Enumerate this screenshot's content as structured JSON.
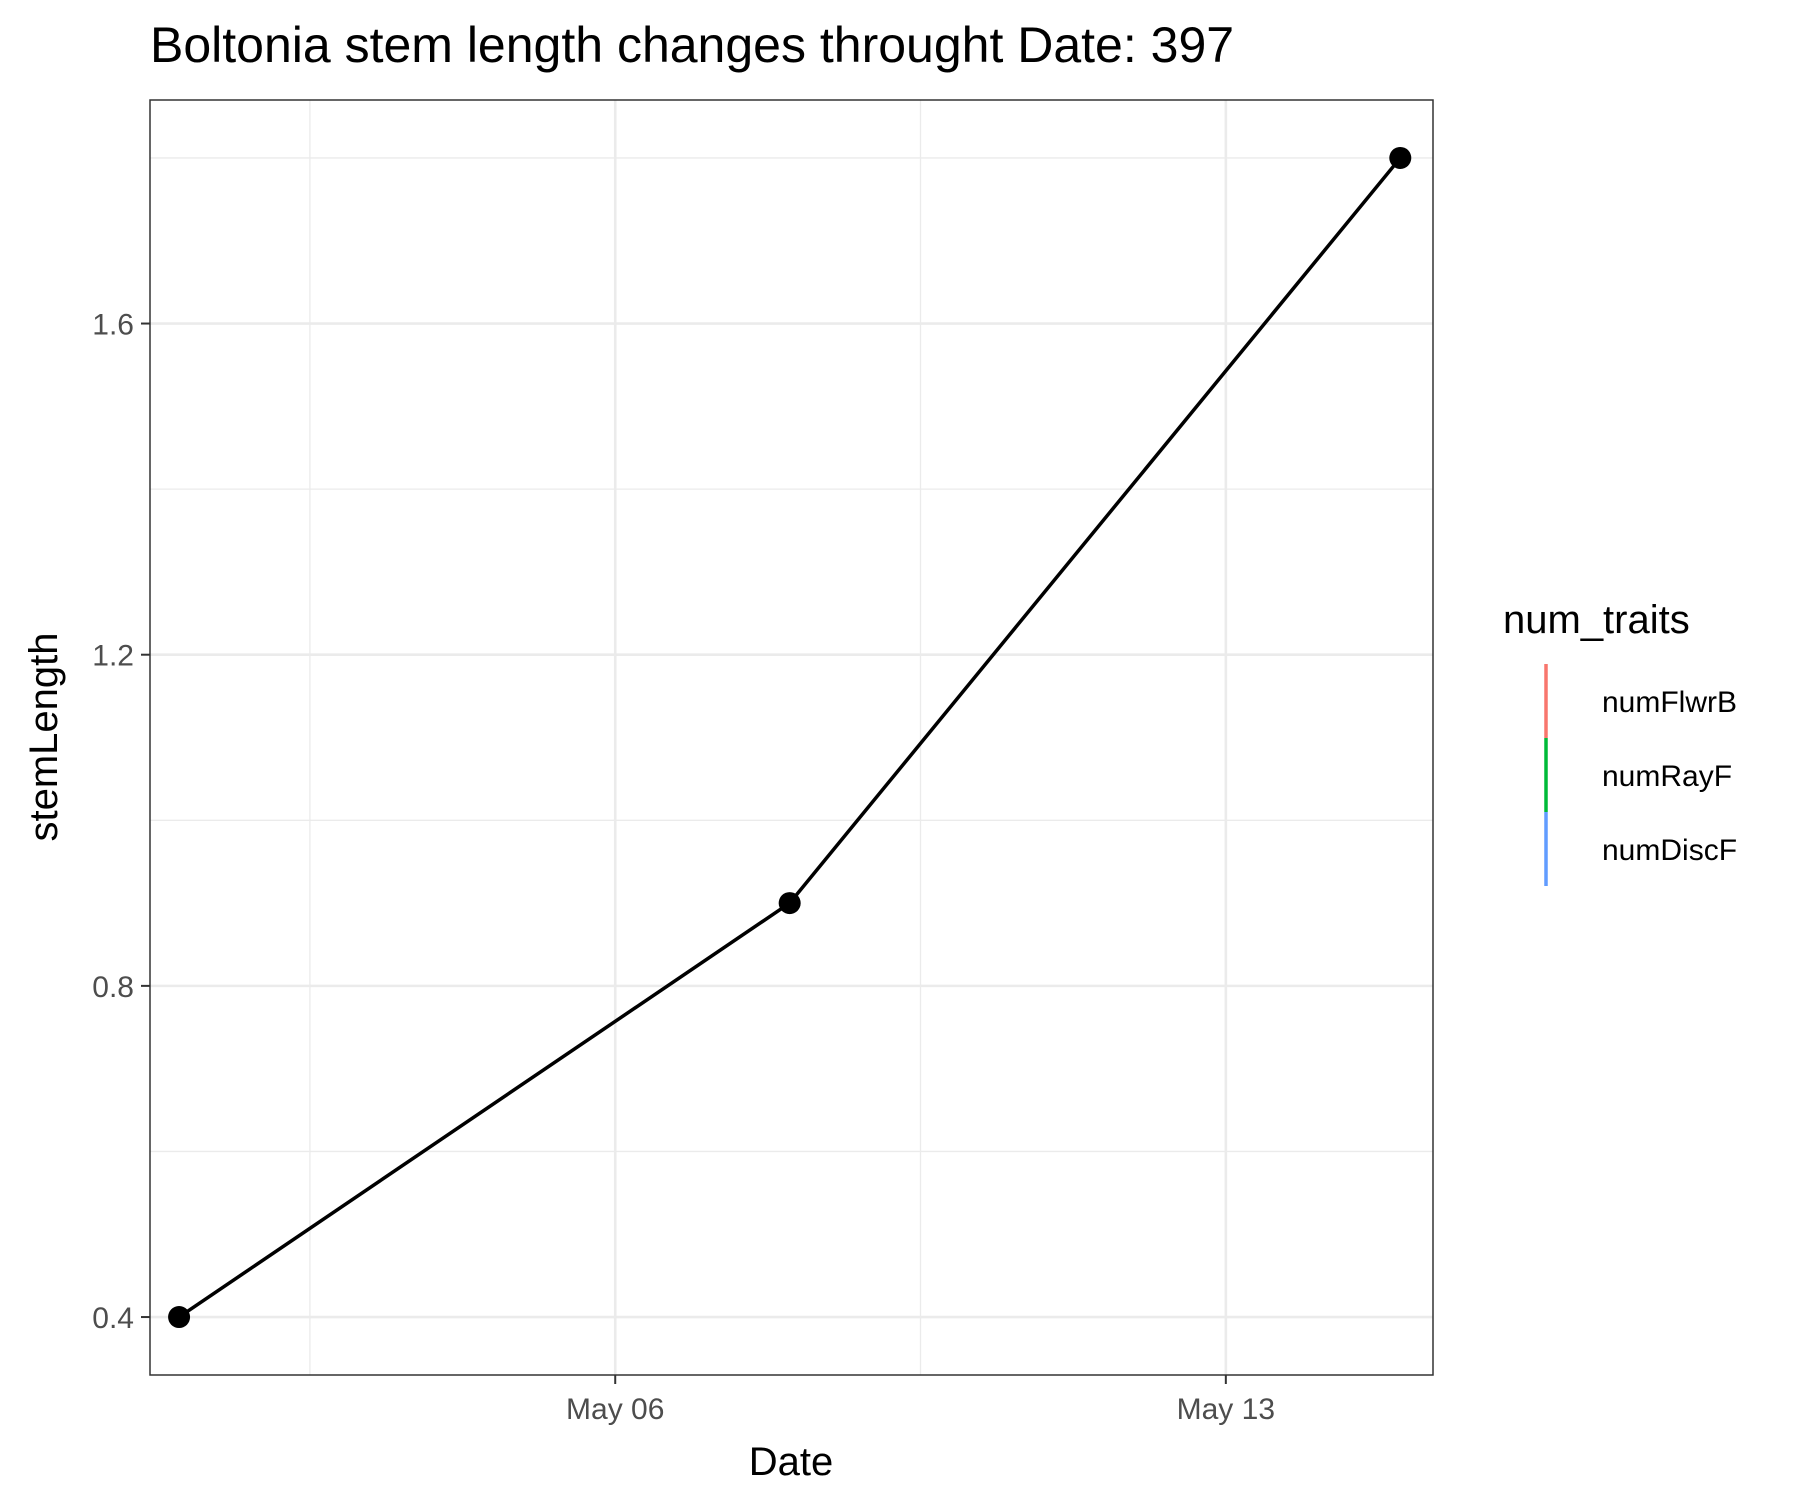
{
  "chart_data": {
    "type": "line",
    "title": "Boltonia stem length changes throught Date:  397",
    "xlabel": "Date",
    "ylabel": "stemLength",
    "x_ticks": [
      "May 06",
      "May 13"
    ],
    "y_ticks": [
      "0.4",
      "0.8",
      "1.2",
      "1.6"
    ],
    "xlim": [
      "2023-04-30T16:00",
      "2023-05-15T09:00"
    ],
    "ylim": [
      0.33,
      1.87
    ],
    "grid": true,
    "series": [
      {
        "color": "#000000",
        "points": [
          {
            "x": "2023-05-01",
            "y": 0.4
          },
          {
            "x": "2023-05-08",
            "y": 0.9
          },
          {
            "x": "2023-05-15",
            "y": 1.8
          }
        ]
      }
    ],
    "legend": {
      "title": "num_traits",
      "position": "right",
      "items": [
        {
          "label": "numFlwrB",
          "color": "#F8766D"
        },
        {
          "label": "numRayF",
          "color": "#00BA38"
        },
        {
          "label": "numDiscF",
          "color": "#619CFF"
        }
      ]
    }
  }
}
